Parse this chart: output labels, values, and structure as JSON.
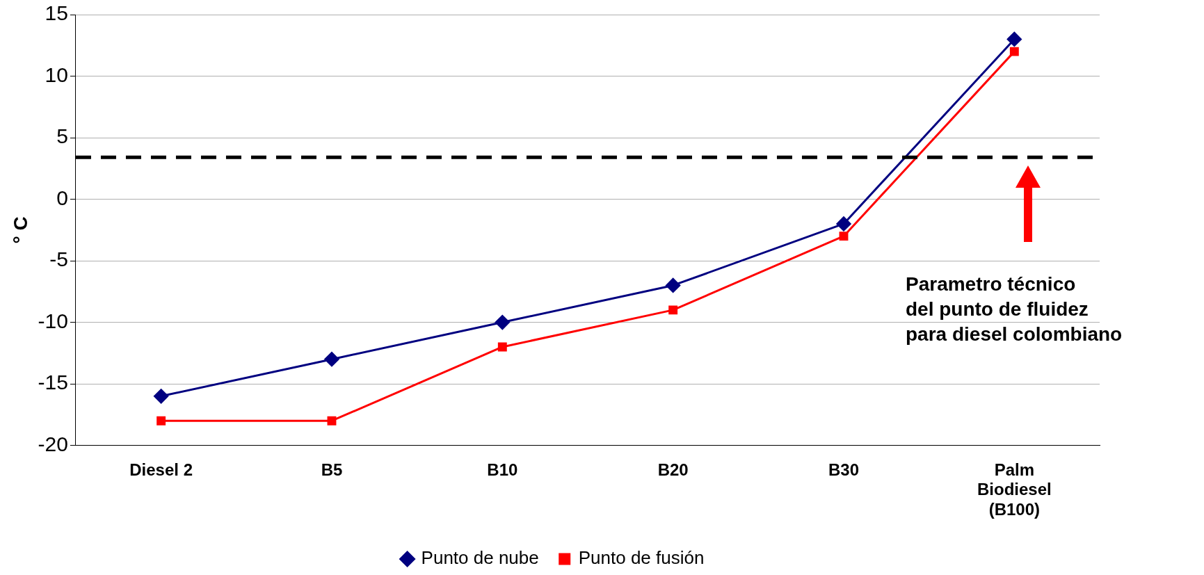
{
  "chart_data": {
    "type": "line",
    "ylabel": "° C",
    "categories": [
      "Diesel 2",
      "B5",
      "B10",
      "B20",
      "B30",
      "Palm\nBiodiesel\n(B100)"
    ],
    "series": [
      {
        "name": "Punto de nube",
        "color": "#000080",
        "marker": "diamond",
        "values": [
          -16,
          -13,
          -10,
          -7,
          -2,
          13
        ]
      },
      {
        "name": "Punto de fusión",
        "color": "#ff0000",
        "marker": "square",
        "values": [
          -18,
          -18,
          -12,
          -9,
          -3,
          12
        ]
      }
    ],
    "ylim": [
      -20,
      15
    ],
    "yticks": [
      -20,
      -15,
      -10,
      -5,
      0,
      5,
      10,
      15
    ],
    "grid": "y",
    "legend": "bottom",
    "line_style": "solid",
    "ref_lines": [
      {
        "axis": "y",
        "value": 3.4,
        "color": "#000000",
        "line_style": "dashed"
      }
    ],
    "annotations": [
      "Parametro técnico\ndel punto de fluidez\npara diesel colombiano"
    ]
  }
}
